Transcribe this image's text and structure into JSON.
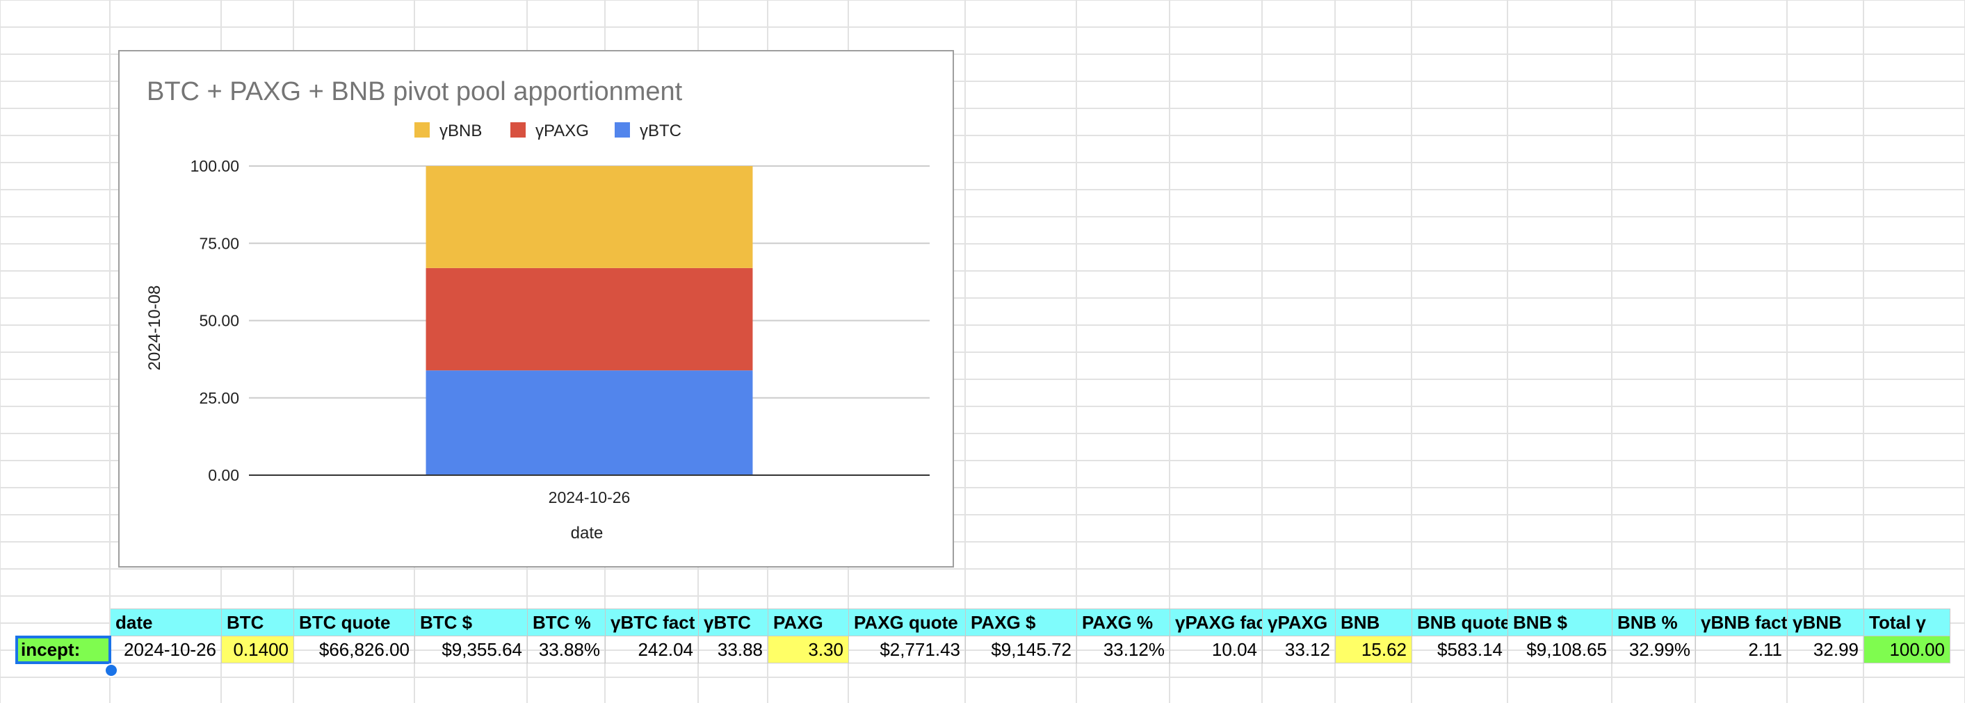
{
  "chart_data": {
    "type": "bar",
    "stacked": true,
    "title": "BTC + PAXG + BNB pivot pool apportionment",
    "xlabel": "date",
    "ylabel": "2024-10-08",
    "categories": [
      "2024-10-26"
    ],
    "ylim": [
      0,
      100
    ],
    "yticks": [
      "0.00",
      "25.00",
      "50.00",
      "75.00",
      "100.00"
    ],
    "grid": true,
    "legend_position": "top",
    "series": [
      {
        "name": "γBTC",
        "values": [
          33.88
        ],
        "color": "#5285ec"
      },
      {
        "name": "γPAXG",
        "values": [
          33.12
        ],
        "color": "#d85140"
      },
      {
        "name": "γBNB",
        "values": [
          32.99
        ],
        "color": "#f1be42"
      }
    ],
    "legend_order": [
      "γBNB",
      "γPAXG",
      "γBTC"
    ]
  },
  "table": {
    "headers": [
      "date",
      "BTC",
      "BTC quote",
      "BTC $",
      "BTC %",
      "γBTC fact",
      "γBTC",
      "PAXG",
      "PAXG quote",
      "PAXG $",
      "PAXG %",
      "γPAXG fac",
      "γPAXG",
      "BNB",
      "BNB quote",
      "BNB $",
      "BNB %",
      "γBNB fact",
      "γBNB",
      "Total γ"
    ],
    "row_label": "incept:",
    "row": [
      "2024-10-26",
      "0.1400",
      "$66,826.00",
      "$9,355.64",
      "33.88%",
      "242.04",
      "33.88",
      "3.30",
      "$2,771.43",
      "$9,145.72",
      "33.12%",
      "10.04",
      "33.12",
      "15.62",
      "$583.14",
      "$9,108.65",
      "32.99%",
      "2.11",
      "32.99",
      "100.00"
    ]
  }
}
